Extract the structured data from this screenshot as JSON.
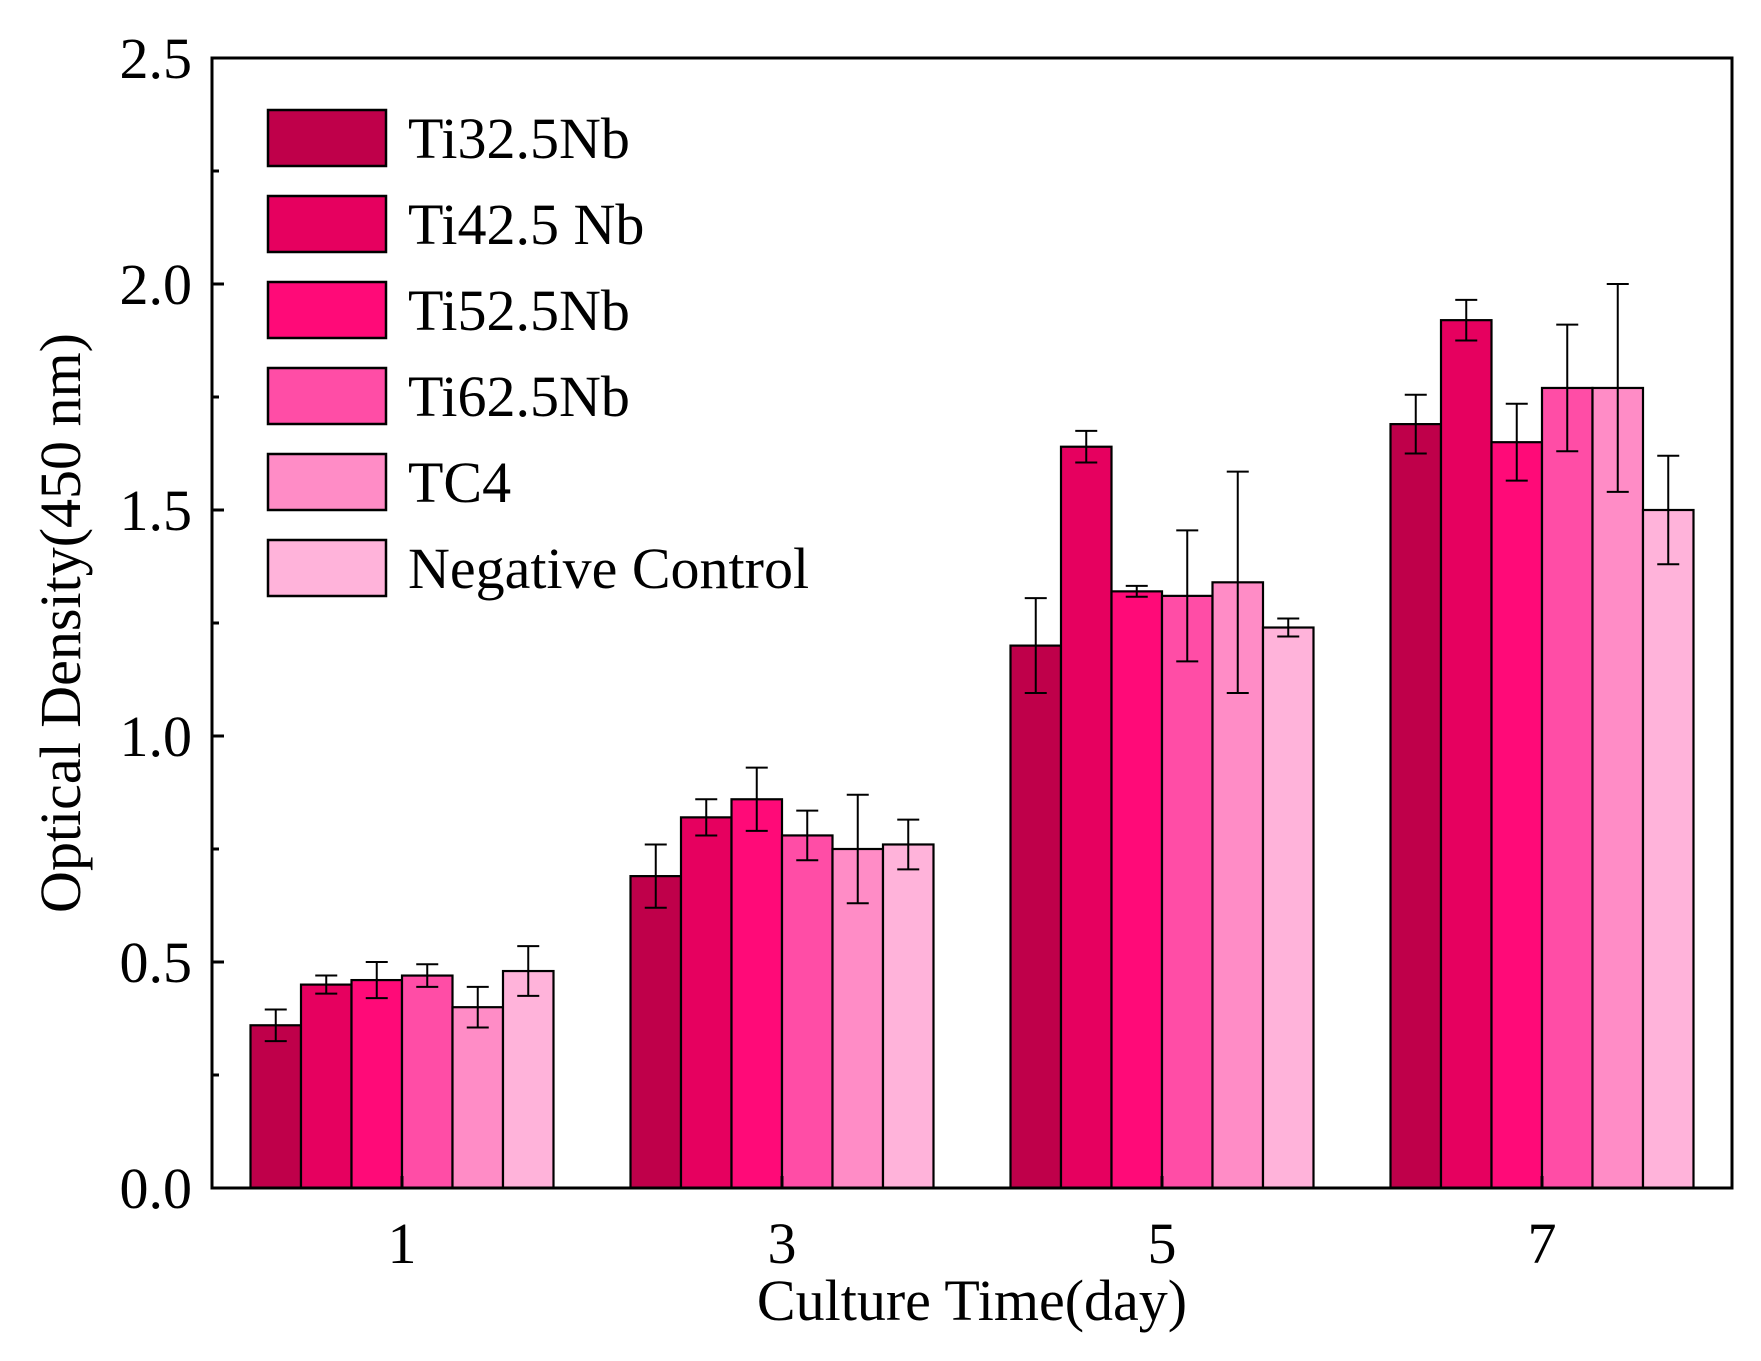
{
  "chart_data": {
    "type": "bar",
    "title": "",
    "xlabel": "Culture Time(day)",
    "ylabel": "Optical Density(450 nm)",
    "categories": [
      "1",
      "3",
      "5",
      "7"
    ],
    "ylim": [
      0,
      2.5
    ],
    "yticks": [
      "0.0",
      "0.5",
      "1.0",
      "1.5",
      "2.0",
      "2.5"
    ],
    "grid": false,
    "legend_position": "top-left",
    "series": [
      {
        "name": "Ti32.5Nb",
        "color": "#BF004A",
        "values": [
          0.36,
          0.69,
          1.2,
          1.69
        ],
        "errors": [
          0.035,
          0.07,
          0.105,
          0.065
        ]
      },
      {
        "name": "Ti42.5 Nb",
        "color": "#E6005F",
        "values": [
          0.45,
          0.82,
          1.64,
          1.92
        ],
        "errors": [
          0.02,
          0.04,
          0.035,
          0.045
        ]
      },
      {
        "name": "Ti52.5Nb",
        "color": "#FF0A78",
        "values": [
          0.46,
          0.86,
          1.32,
          1.65
        ],
        "errors": [
          0.04,
          0.07,
          0.012,
          0.085
        ]
      },
      {
        "name": "Ti62.5Nb",
        "color": "#FF4DA6",
        "values": [
          0.47,
          0.78,
          1.31,
          1.77
        ],
        "errors": [
          0.025,
          0.055,
          0.145,
          0.14
        ]
      },
      {
        "name": "TC4",
        "color": "#FF8CC6",
        "values": [
          0.4,
          0.75,
          1.34,
          1.77
        ],
        "errors": [
          0.045,
          0.12,
          0.245,
          0.23
        ]
      },
      {
        "name": "Negative Control",
        "color": "#FFB3DA",
        "values": [
          0.48,
          0.76,
          1.24,
          1.5
        ],
        "errors": [
          0.055,
          0.055,
          0.02,
          0.12
        ]
      }
    ]
  }
}
